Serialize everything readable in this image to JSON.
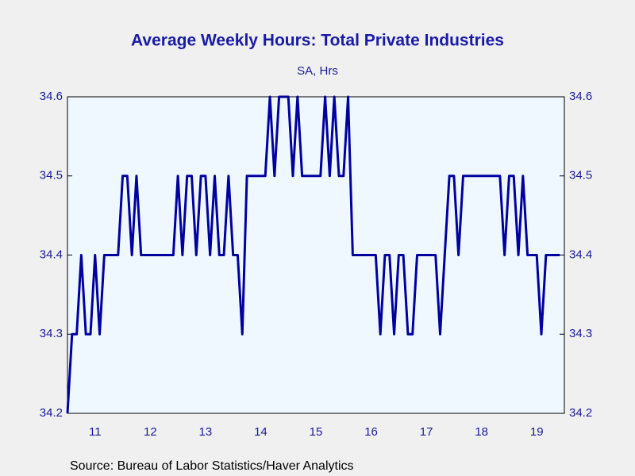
{
  "chart_data": {
    "type": "line",
    "title": "Average Weekly Hours: Total Private Industries",
    "subtitle": "SA, Hrs",
    "source": "Source:  Bureau of Labor Statistics/Haver Analytics",
    "x": [
      2011.0,
      2011.083,
      2011.167,
      2011.25,
      2011.333,
      2011.417,
      2011.5,
      2011.583,
      2011.667,
      2011.75,
      2011.833,
      2011.917,
      2012.0,
      2012.083,
      2012.167,
      2012.25,
      2012.333,
      2012.417,
      2012.5,
      2012.583,
      2012.667,
      2012.75,
      2012.833,
      2012.917,
      2013.0,
      2013.083,
      2013.167,
      2013.25,
      2013.333,
      2013.417,
      2013.5,
      2013.583,
      2013.667,
      2013.75,
      2013.833,
      2013.917,
      2014.0,
      2014.083,
      2014.167,
      2014.25,
      2014.333,
      2014.417,
      2014.5,
      2014.583,
      2014.667,
      2014.75,
      2014.833,
      2014.917,
      2015.0,
      2015.083,
      2015.167,
      2015.25,
      2015.333,
      2015.417,
      2015.5,
      2015.583,
      2015.667,
      2015.75,
      2015.833,
      2015.917,
      2016.0,
      2016.083,
      2016.167,
      2016.25,
      2016.333,
      2016.417,
      2016.5,
      2016.583,
      2016.667,
      2016.75,
      2016.833,
      2016.917,
      2017.0,
      2017.083,
      2017.167,
      2017.25,
      2017.333,
      2017.417,
      2017.5,
      2017.583,
      2017.667,
      2017.75,
      2017.833,
      2017.917,
      2018.0,
      2018.083,
      2018.167,
      2018.25,
      2018.333,
      2018.417,
      2018.5,
      2018.583,
      2018.667,
      2018.75,
      2018.833,
      2018.917,
      2019.0,
      2019.083,
      2019.167,
      2019.25,
      2019.333,
      2019.417,
      2019.5,
      2019.583,
      2019.667,
      2019.75,
      2019.833,
      2019.917
    ],
    "series": [
      {
        "name": "Average Weekly Hours",
        "color": "#0000a0",
        "values": [
          34.2,
          34.3,
          34.3,
          34.4,
          34.3,
          34.3,
          34.4,
          34.3,
          34.4,
          34.4,
          34.4,
          34.4,
          34.5,
          34.5,
          34.4,
          34.5,
          34.4,
          34.4,
          34.4,
          34.4,
          34.4,
          34.4,
          34.4,
          34.4,
          34.5,
          34.4,
          34.5,
          34.5,
          34.4,
          34.5,
          34.5,
          34.4,
          34.5,
          34.4,
          34.4,
          34.5,
          34.4,
          34.4,
          34.3,
          34.5,
          34.5,
          34.5,
          34.5,
          34.5,
          34.6,
          34.5,
          34.6,
          34.6,
          34.6,
          34.5,
          34.6,
          34.5,
          34.5,
          34.5,
          34.5,
          34.5,
          34.6,
          34.5,
          34.6,
          34.5,
          34.5,
          34.6,
          34.4,
          34.4,
          34.4,
          34.4,
          34.4,
          34.4,
          34.3,
          34.4,
          34.4,
          34.3,
          34.4,
          34.4,
          34.3,
          34.3,
          34.4,
          34.4,
          34.4,
          34.4,
          34.4,
          34.3,
          34.4,
          34.5,
          34.5,
          34.4,
          34.5,
          34.5,
          34.5,
          34.5,
          34.5,
          34.5,
          34.5,
          34.5,
          34.5,
          34.4,
          34.5,
          34.5,
          34.4,
          34.5,
          34.4,
          34.4,
          34.4,
          34.3,
          34.4,
          34.4,
          34.4,
          34.4
        ]
      }
    ],
    "xlim": [
      2011,
      2020
    ],
    "xticks": [
      {
        "value": 2011.5,
        "label": "11"
      },
      {
        "value": 2012.5,
        "label": "12"
      },
      {
        "value": 2013.5,
        "label": "13"
      },
      {
        "value": 2014.5,
        "label": "14"
      },
      {
        "value": 2015.5,
        "label": "15"
      },
      {
        "value": 2016.5,
        "label": "16"
      },
      {
        "value": 2017.5,
        "label": "17"
      },
      {
        "value": 2018.5,
        "label": "18"
      },
      {
        "value": 2019.5,
        "label": "19"
      }
    ],
    "ylim": [
      34.2,
      34.6
    ],
    "yticks": [
      34.2,
      34.3,
      34.4,
      34.5,
      34.6
    ],
    "y2lim": [
      34.2,
      34.6
    ],
    "y2ticks": [
      34.2,
      34.3,
      34.4,
      34.5,
      34.6
    ]
  }
}
